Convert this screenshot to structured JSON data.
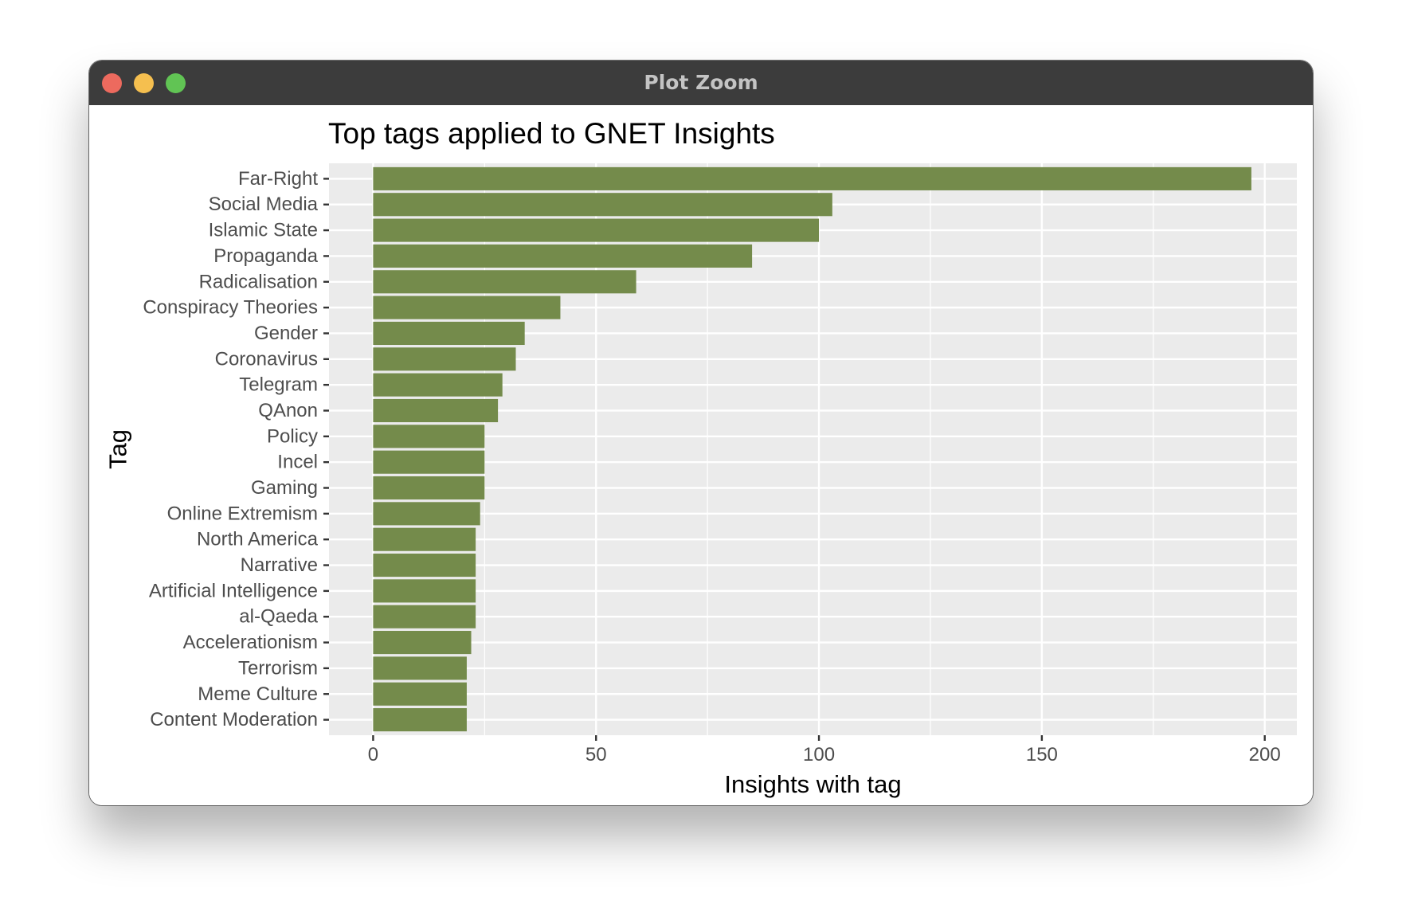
{
  "window": {
    "title": "Plot Zoom"
  },
  "chart_data": {
    "type": "bar",
    "orientation": "horizontal",
    "title": "Top tags applied to GNET Insights",
    "xlabel": "Insights with tag",
    "ylabel": "Tag",
    "xlim": [
      -9.9,
      207.2
    ],
    "xticks": [
      0,
      50,
      100,
      150,
      200
    ],
    "xtick_labels": [
      "0",
      "50",
      "100",
      "150",
      "200"
    ],
    "grid": true,
    "bar_color": "#748b4b",
    "panel_color": "#ebebeb",
    "categories": [
      "Far-Right",
      "Social Media",
      "Islamic State",
      "Propaganda",
      "Radicalisation",
      "Conspiracy Theories",
      "Gender",
      "Coronavirus",
      "Telegram",
      "QAnon",
      "Policy",
      "Incel",
      "Gaming",
      "Online Extremism",
      "North America",
      "Narrative",
      "Artificial Intelligence",
      "al-Qaeda",
      "Accelerationism",
      "Terrorism",
      "Meme Culture",
      "Content Moderation"
    ],
    "values": [
      197,
      103,
      100,
      85,
      59,
      42,
      34,
      32,
      29,
      28,
      25,
      25,
      25,
      24,
      23,
      23,
      23,
      23,
      22,
      21,
      21,
      21
    ]
  }
}
